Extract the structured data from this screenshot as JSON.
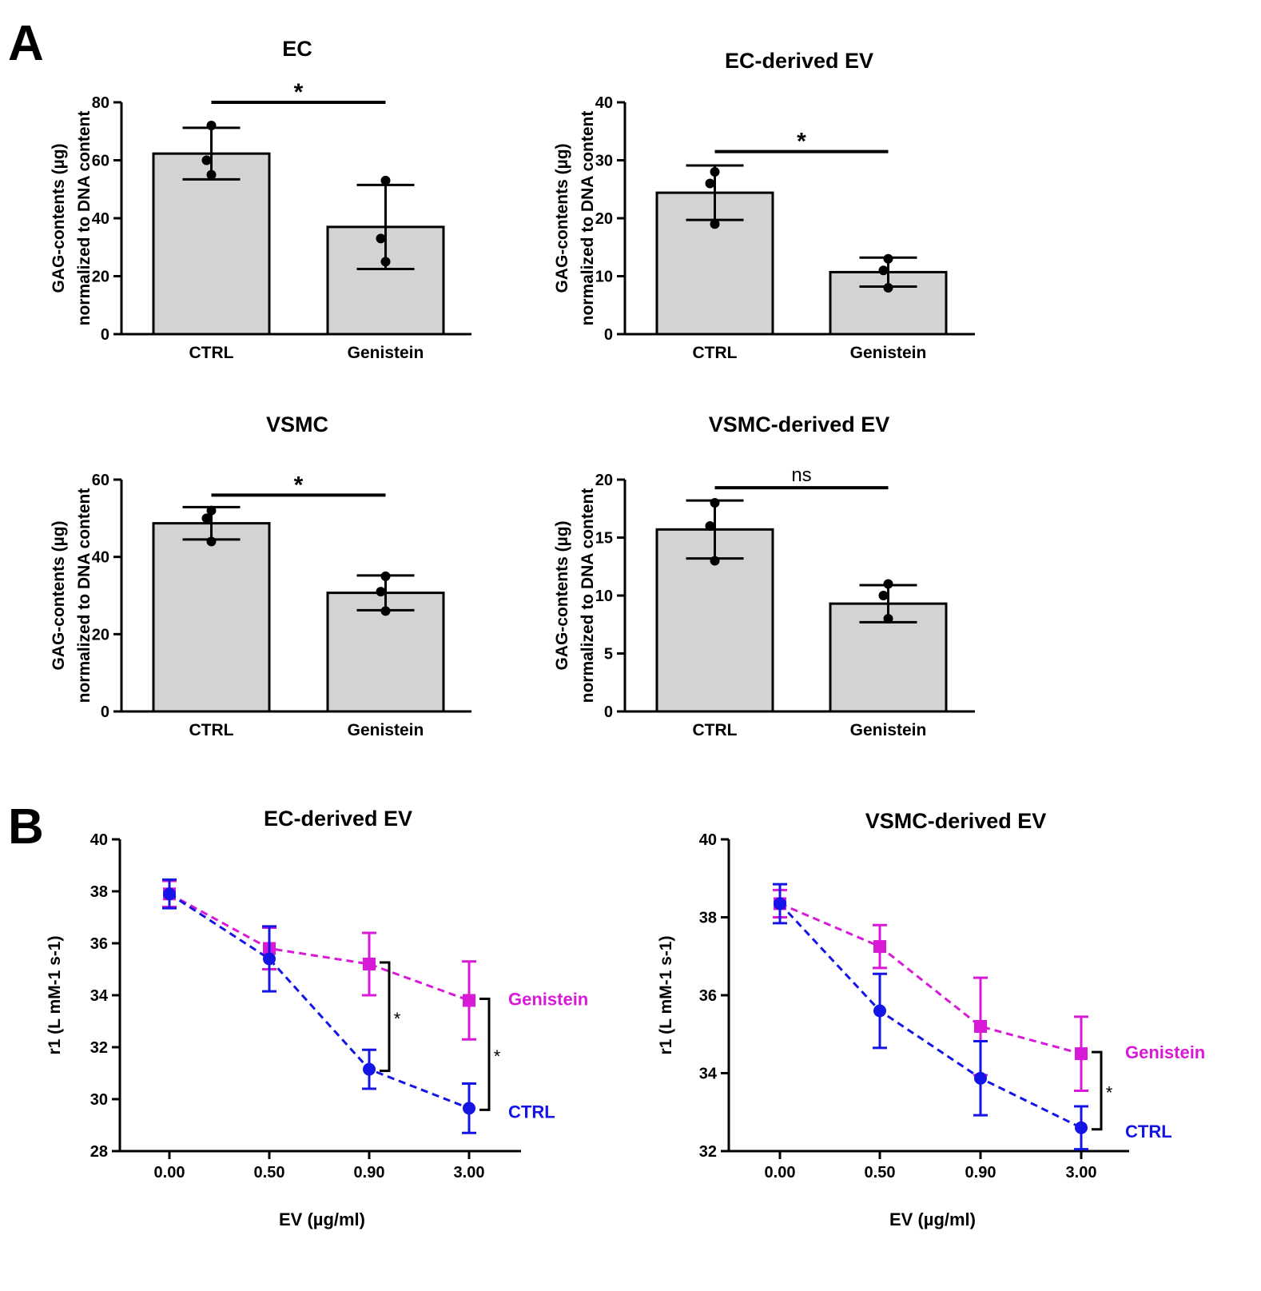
{
  "figure": {
    "panel_A_label": "A",
    "panel_B_label": "B",
    "colors": {
      "bar_fill": "#d3d3d3",
      "ink": "#000000",
      "ctrl": "#1414e6",
      "genistein": "#d81ad8"
    }
  },
  "chart_data": [
    {
      "type": "bar",
      "panel": "A",
      "title": "EC",
      "ylabel": [
        "GAG-contents (µg)",
        "normalized to DNA content"
      ],
      "xlabel": "",
      "categories": [
        "CTRL",
        "Genistein"
      ],
      "values": [
        62.3,
        37
      ],
      "errors": [
        8.9,
        14.5
      ],
      "points": [
        [
          72,
          60,
          55
        ],
        [
          53,
          33,
          25
        ]
      ],
      "ylim": [
        0,
        80
      ],
      "yticks": [
        0,
        20,
        40,
        60,
        80
      ],
      "significance": {
        "label": "*",
        "between": [
          0,
          1
        ],
        "y": 80
      }
    },
    {
      "type": "bar",
      "panel": "A",
      "title": "EC-derived EV",
      "ylabel": [
        "GAG-contents (µg)",
        "normalized to DNA content"
      ],
      "xlabel": "",
      "categories": [
        "CTRL",
        "Genistein"
      ],
      "values": [
        24.4,
        10.7
      ],
      "errors": [
        4.7,
        2.5
      ],
      "points": [
        [
          28,
          26,
          19
        ],
        [
          13,
          11,
          8
        ]
      ],
      "ylim": [
        0,
        40
      ],
      "yticks": [
        0,
        10,
        20,
        30,
        40
      ],
      "significance": {
        "label": "*",
        "between": [
          0,
          1
        ],
        "y": 31.5
      }
    },
    {
      "type": "bar",
      "panel": "A",
      "title": "VSMC",
      "ylabel": [
        "GAG-contents (µg)",
        "normalized to DNA content"
      ],
      "xlabel": "",
      "categories": [
        "CTRL",
        "Genistein"
      ],
      "values": [
        48.7,
        30.7
      ],
      "errors": [
        4.2,
        4.5
      ],
      "points": [
        [
          52,
          50,
          44
        ],
        [
          35,
          31,
          26
        ]
      ],
      "ylim": [
        0,
        60
      ],
      "yticks": [
        0,
        20,
        40,
        60
      ],
      "significance": {
        "label": "*",
        "between": [
          0,
          1
        ],
        "y": 56
      }
    },
    {
      "type": "bar",
      "panel": "A",
      "title": "VSMC-derived EV",
      "ylabel": [
        "GAG-contents (µg)",
        "normalized to DNA content"
      ],
      "xlabel": "",
      "categories": [
        "CTRL",
        "Genistein"
      ],
      "values": [
        15.7,
        9.3
      ],
      "errors": [
        2.5,
        1.6
      ],
      "points": [
        [
          18,
          16,
          13
        ],
        [
          11,
          10,
          8
        ]
      ],
      "ylim": [
        0,
        20
      ],
      "yticks": [
        0,
        5,
        10,
        15,
        20
      ],
      "significance": {
        "label": "ns",
        "between": [
          0,
          1
        ],
        "y": 19.3
      }
    },
    {
      "type": "line",
      "panel": "B",
      "title": "EC-derived EV",
      "xlabel": "EV (µg/ml)",
      "ylabel": "r1 (L mM-1 s-1)",
      "categories": [
        "0.00",
        "0.50",
        "0.90",
        "3.00"
      ],
      "ylim": [
        28,
        40
      ],
      "yticks": [
        28,
        30,
        32,
        34,
        36,
        38,
        40
      ],
      "series": [
        {
          "name": "Genistein",
          "marker": "square",
          "values": [
            37.9,
            35.8,
            35.2,
            33.8
          ],
          "errors": [
            0.5,
            0.8,
            1.2,
            1.5
          ]
        },
        {
          "name": "CTRL",
          "marker": "circle",
          "values": [
            37.9,
            35.4,
            31.15,
            29.65
          ],
          "errors": [
            0.55,
            1.25,
            0.75,
            0.95
          ]
        }
      ],
      "comparisons": [
        {
          "label": "*",
          "x_index": 2
        },
        {
          "label": "*",
          "x_index": 3
        }
      ]
    },
    {
      "type": "line",
      "panel": "B",
      "title": "VSMC-derived EV",
      "xlabel": "EV (µg/ml)",
      "ylabel": "r1 (L mM-1 s-1)",
      "categories": [
        "0.00",
        "0.50",
        "0.90",
        "3.00"
      ],
      "ylim": [
        32,
        40
      ],
      "yticks": [
        32,
        34,
        36,
        38,
        40
      ],
      "series": [
        {
          "name": "Genistein",
          "marker": "square",
          "values": [
            38.35,
            37.25,
            35.2,
            34.5
          ],
          "errors": [
            0.35,
            0.55,
            1.25,
            0.95
          ]
        },
        {
          "name": "CTRL",
          "marker": "circle",
          "values": [
            38.35,
            35.6,
            33.87,
            32.6
          ],
          "errors": [
            0.5,
            0.95,
            0.95,
            0.55
          ]
        }
      ],
      "comparisons": [
        {
          "label": "*",
          "x_index": 3
        }
      ]
    }
  ]
}
